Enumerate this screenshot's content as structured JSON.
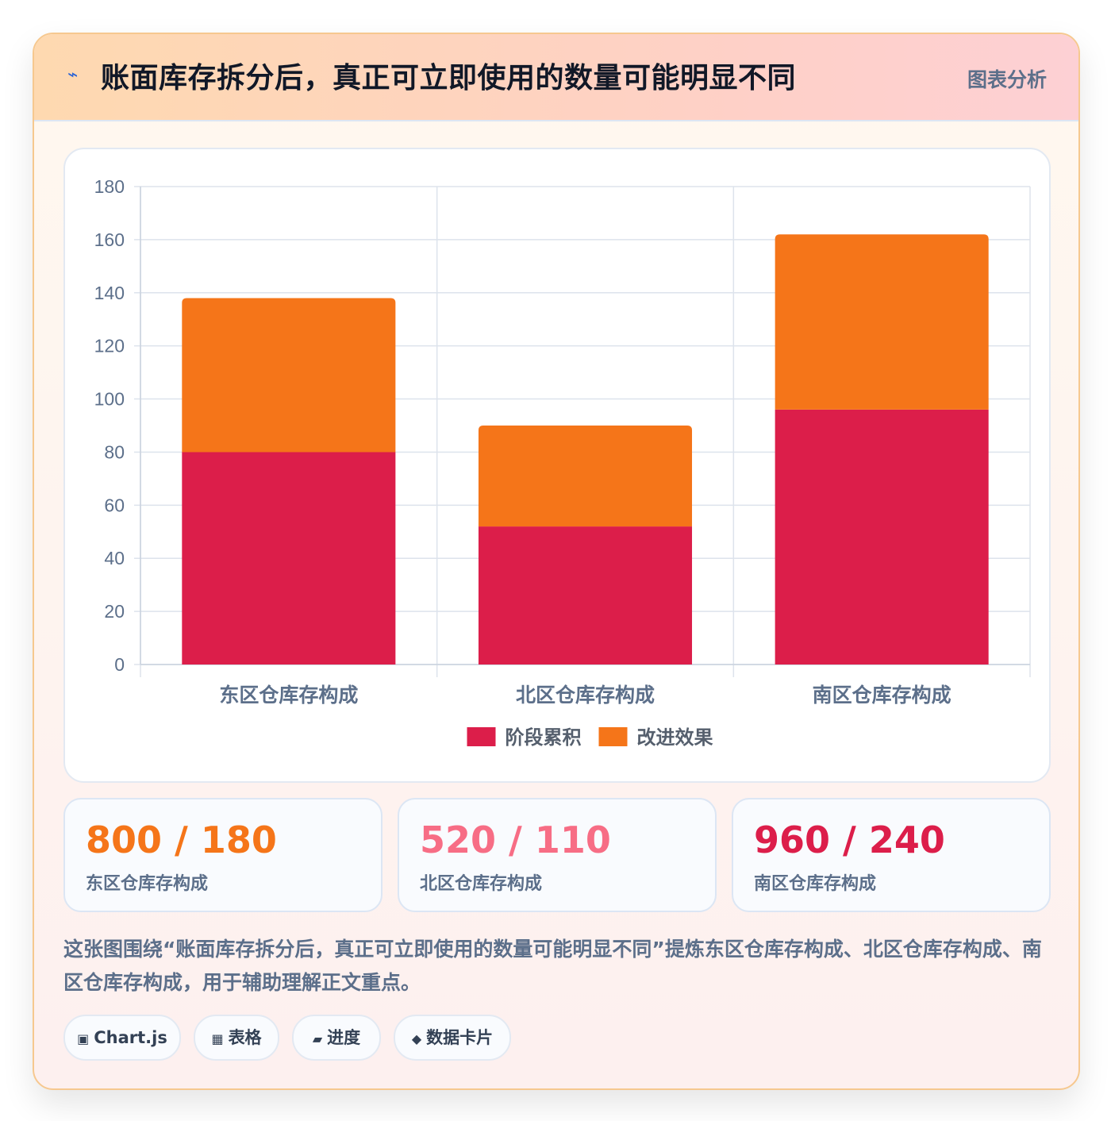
{
  "header": {
    "icon": "lightning-icon",
    "title": "账面库存拆分后，真正可立即使用的数量可能明显不同",
    "badge": "图表分析"
  },
  "colors": {
    "series_1": "#dc1e4a",
    "series_2": "#f57519",
    "stat_1": "#f57519",
    "stat_2": "#f76d85",
    "stat_3": "#dc1e4a"
  },
  "chart_data": {
    "type": "bar",
    "stacked": true,
    "categories": [
      "东区仓库存构成",
      "北区仓库存构成",
      "南区仓库存构成"
    ],
    "series": [
      {
        "name": "阶段累积",
        "values": [
          80,
          52,
          96
        ]
      },
      {
        "name": "改进效果",
        "values": [
          58,
          38,
          66
        ]
      }
    ],
    "ylim": [
      0,
      180
    ],
    "yticks": [
      "0",
      "20",
      "40",
      "60",
      "80",
      "100",
      "120",
      "140",
      "160",
      "180"
    ],
    "grid": true,
    "legend": "bottom"
  },
  "stats": [
    {
      "value": "800 / 180",
      "label": "东区仓库存构成"
    },
    {
      "value": "520 / 110",
      "label": "北区仓库存构成"
    },
    {
      "value": "960 / 240",
      "label": "南区仓库存构成"
    }
  ],
  "description": "这张图围绕“账面库存拆分后，真正可立即使用的数量可能明显不同”提炼东区仓库存构成、北区仓库存构成、南区仓库存构成，用于辅助理解正文重点。",
  "tags": [
    {
      "icon": "square-icon",
      "glyph": "▣",
      "label": "Chart.js"
    },
    {
      "icon": "table-icon",
      "glyph": "▦",
      "label": "表格"
    },
    {
      "icon": "progress-icon",
      "glyph": "▰",
      "label": "进度"
    },
    {
      "icon": "diamond-icon",
      "glyph": "◆",
      "label": "数据卡片"
    }
  ]
}
